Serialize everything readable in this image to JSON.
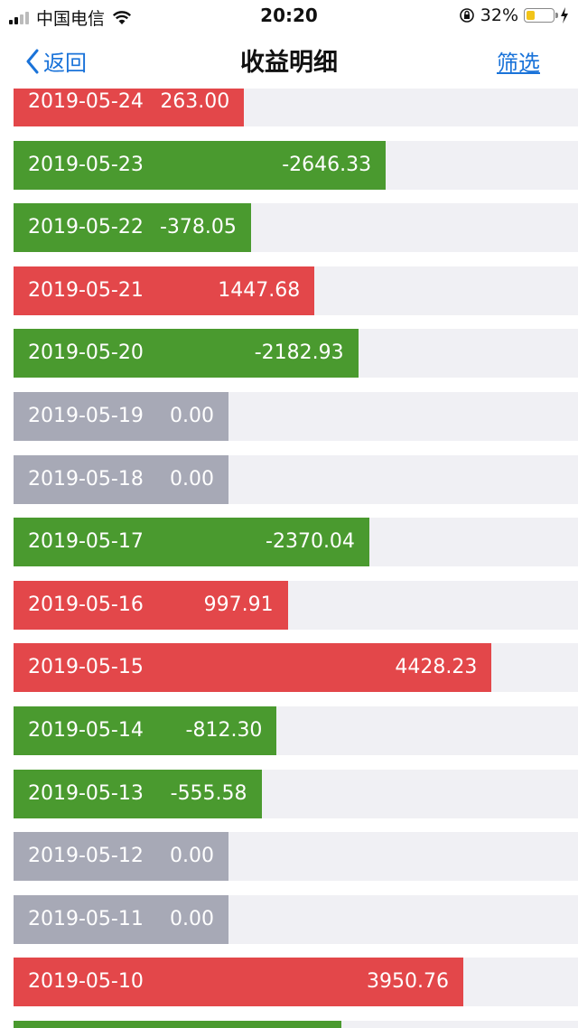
{
  "status_bar": {
    "carrier": "中国电信",
    "time": "20:20",
    "battery_percent": "32%",
    "battery_level": 0.32,
    "icons": [
      "signal-icon",
      "wifi-icon",
      "rotation-lock-icon",
      "battery-icon",
      "charging-icon"
    ]
  },
  "nav": {
    "back_label": "返回",
    "title": "收益明细",
    "filter_label": "筛选"
  },
  "colors": {
    "positive": "#e3474a",
    "negative": "#4a9a2f",
    "zero": "#a7a9b6",
    "track": "#f0f0f4",
    "link": "#1a73d9"
  },
  "rows": [
    {
      "date": "2019-05-24",
      "amount": "263.00",
      "value": 263.0
    },
    {
      "date": "2019-05-23",
      "amount": "-2646.33",
      "value": -2646.33
    },
    {
      "date": "2019-05-22",
      "amount": "-378.05",
      "value": -378.05
    },
    {
      "date": "2019-05-21",
      "amount": "1447.68",
      "value": 1447.68
    },
    {
      "date": "2019-05-20",
      "amount": "-2182.93",
      "value": -2182.93
    },
    {
      "date": "2019-05-19",
      "amount": "0.00",
      "value": 0
    },
    {
      "date": "2019-05-18",
      "amount": "0.00",
      "value": 0
    },
    {
      "date": "2019-05-17",
      "amount": "-2370.04",
      "value": -2370.04
    },
    {
      "date": "2019-05-16",
      "amount": "997.91",
      "value": 997.91
    },
    {
      "date": "2019-05-15",
      "amount": "4428.23",
      "value": 4428.23
    },
    {
      "date": "2019-05-14",
      "amount": "-812.30",
      "value": -812.3
    },
    {
      "date": "2019-05-13",
      "amount": "-555.58",
      "value": -555.58
    },
    {
      "date": "2019-05-12",
      "amount": "0.00",
      "value": 0
    },
    {
      "date": "2019-05-11",
      "amount": "0.00",
      "value": 0
    },
    {
      "date": "2019-05-10",
      "amount": "3950.76",
      "value": 3950.76
    },
    {
      "date": "",
      "amount": "",
      "value": -1900
    }
  ]
}
